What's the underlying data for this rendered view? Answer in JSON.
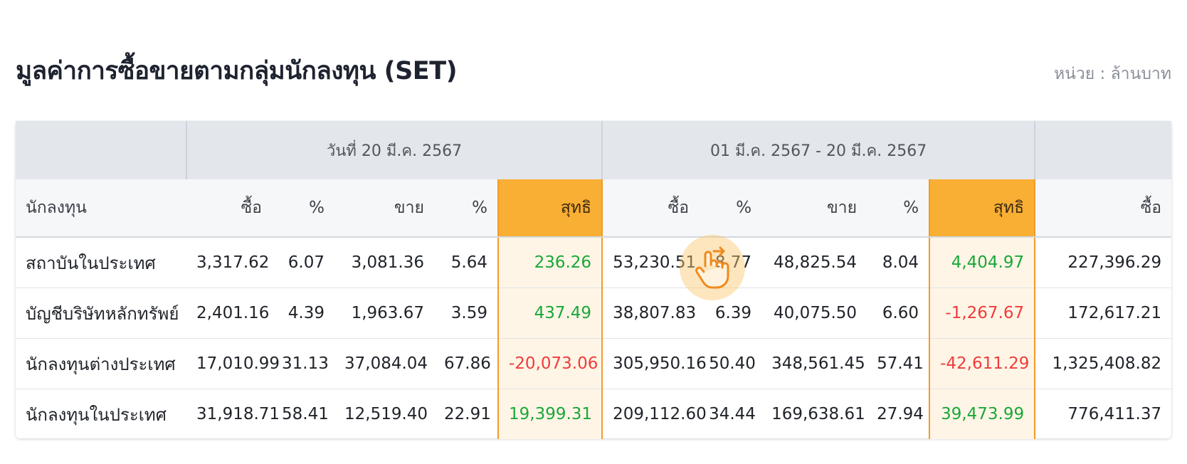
{
  "header": {
    "title": "มูลค่าการซื้อขายตามกลุ่มนักลงทุน (SET)",
    "unit": "หน่วย : ล้านบาท"
  },
  "table": {
    "group_headers": [
      "",
      "วันที่ 20 มี.ค. 2567",
      "01 มี.ค. 2567 - 20 มี.ค. 2567",
      ""
    ],
    "columns": [
      "นักลงทุน",
      "ซื้อ",
      "%",
      "ขาย",
      "%",
      "สุทธิ",
      "ซื้อ",
      "%",
      "ขาย",
      "%",
      "สุทธิ",
      "ซื้อ"
    ],
    "rows": [
      [
        "สถาบันในประเทศ",
        "3,317.62",
        "6.07",
        "3,081.36",
        "5.64",
        "236.26",
        "53,230.51",
        "8.77",
        "48,825.54",
        "8.04",
        "4,404.97",
        "227,396.29"
      ],
      [
        "บัญชีบริษัทหลักทรัพย์",
        "2,401.16",
        "4.39",
        "1,963.67",
        "3.59",
        "437.49",
        "38,807.83",
        "6.39",
        "40,075.50",
        "6.60",
        "-1,267.67",
        "172,617.21"
      ],
      [
        "นักลงทุนต่างประเทศ",
        "17,010.99",
        "31.13",
        "37,084.04",
        "67.86",
        "-20,073.06",
        "305,950.16",
        "50.40",
        "348,561.45",
        "57.41",
        "-42,611.29",
        "1,325,408.82"
      ],
      [
        "นักลงทุนในประเทศ",
        "31,918.71",
        "58.41",
        "12,519.40",
        "22.91",
        "19,399.31",
        "209,112.60",
        "34.44",
        "169,638.61",
        "27.94",
        "39,473.99",
        "776,411.37"
      ]
    ]
  },
  "icons": {
    "swipe_hint": "hand-swipe-icon"
  },
  "colors": {
    "net_header": "#f9ae34",
    "positive": "#19a838",
    "negative": "#ef3c3c"
  }
}
